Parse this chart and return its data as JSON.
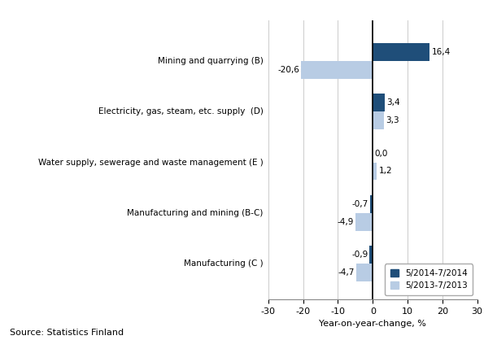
{
  "categories": [
    "Manufacturing (C )",
    "Manufacturing and mining (B-C)",
    "Water supply, sewerage and waste management (E )",
    "Electricity, gas, steam, etc. supply  (D)",
    "Mining and quarrying (B)"
  ],
  "series_2014": [
    -0.9,
    -0.7,
    0.0,
    3.4,
    16.4
  ],
  "series_2013": [
    -4.7,
    -4.9,
    1.2,
    3.3,
    -20.6
  ],
  "color_2014": "#1f4e79",
  "color_2013": "#b8cce4",
  "legend_2014": "5/2014-7/2014",
  "legend_2013": "5/2013-7/2013",
  "xlabel": "Year-on-year-change, %",
  "xlim": [
    -30,
    30
  ],
  "xticks": [
    -30,
    -20,
    -10,
    0,
    10,
    20,
    30
  ],
  "bar_height": 0.35,
  "source": "Source: Statistics Finland",
  "background_color": "#ffffff",
  "plot_bg_color": "#ffffff"
}
